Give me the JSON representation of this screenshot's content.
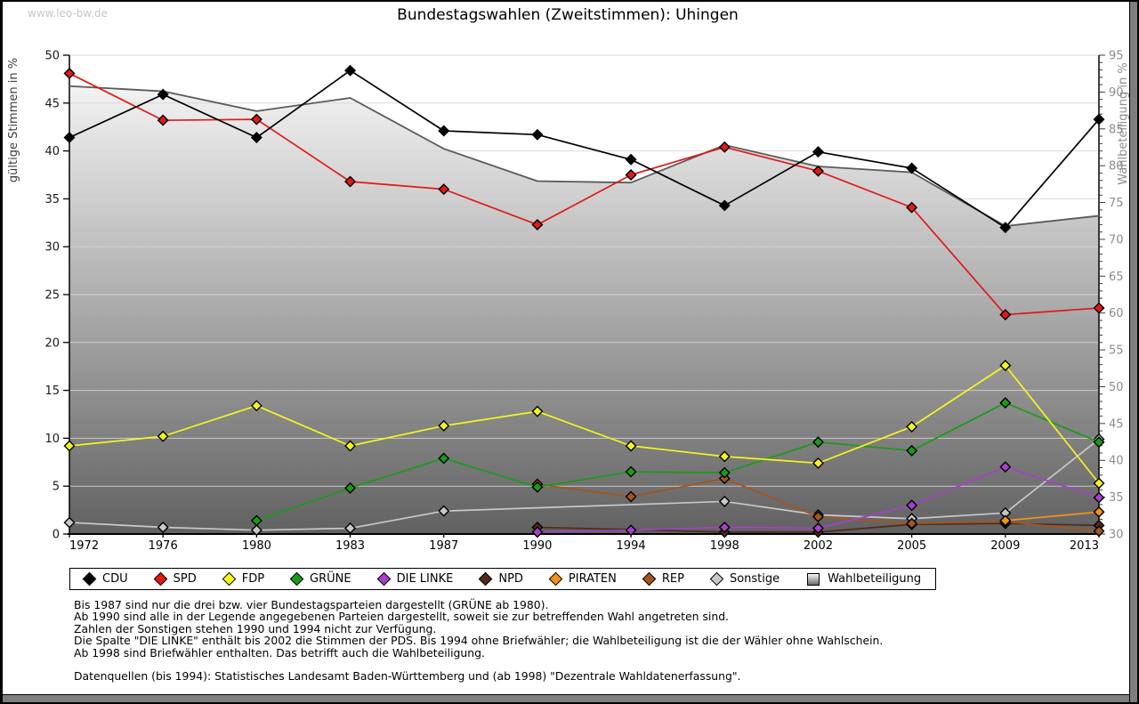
{
  "watermark": "www.leo-bw.de",
  "title": "Bundestagswahlen (Zweitstimmen): Uhingen",
  "chart_data": {
    "type": "line",
    "x": [
      "1972",
      "1976",
      "1980",
      "1983",
      "1987",
      "1990",
      "1994",
      "1998",
      "2002",
      "2005",
      "2009",
      "2013"
    ],
    "left_axis": {
      "label": "gültige Stimmen in %",
      "min": 0,
      "max": 50,
      "step": 5
    },
    "right_axis": {
      "label": "Wahlbeteiligung in %",
      "min": 30,
      "max": 95,
      "step": 5
    },
    "grid": true,
    "legend_position": "bottom",
    "area_fill": {
      "top": "#fdfdfd",
      "bottom": "#616161"
    },
    "series": [
      {
        "name": "CDU",
        "color": "#000000",
        "axis": "left",
        "values": [
          41.4,
          45.9,
          41.4,
          48.4,
          42.1,
          41.7,
          39.1,
          34.3,
          39.9,
          38.2,
          32.0,
          43.3
        ]
      },
      {
        "name": "SPD",
        "color": "#e01919",
        "axis": "left",
        "values": [
          48.1,
          43.2,
          43.3,
          36.8,
          36.0,
          32.3,
          37.5,
          40.4,
          37.9,
          34.1,
          22.9,
          23.6
        ]
      },
      {
        "name": "FDP",
        "color": "#f5f51e",
        "axis": "left",
        "values": [
          9.2,
          10.2,
          13.4,
          9.2,
          11.3,
          12.8,
          9.2,
          8.1,
          7.4,
          11.2,
          17.6,
          5.3
        ]
      },
      {
        "name": "GRÜNE",
        "color": "#189c18",
        "axis": "left",
        "values": [
          null,
          null,
          1.4,
          4.8,
          7.9,
          4.9,
          6.5,
          6.4,
          9.6,
          8.7,
          13.7,
          9.6
        ]
      },
      {
        "name": "DIE LINKE",
        "color": "#a541c9",
        "axis": "left",
        "values": [
          null,
          null,
          null,
          null,
          null,
          0.2,
          0.4,
          0.7,
          0.6,
          3.0,
          7.0,
          3.8
        ]
      },
      {
        "name": "NPD",
        "color": "#4f2c15",
        "axis": "left",
        "values": [
          null,
          null,
          null,
          null,
          null,
          0.7,
          null,
          0.2,
          0.2,
          1.0,
          1.1,
          0.9
        ]
      },
      {
        "name": "PIRATEN",
        "color": "#f39218",
        "axis": "left",
        "values": [
          null,
          null,
          null,
          null,
          null,
          null,
          null,
          null,
          null,
          null,
          1.4,
          2.3
        ]
      },
      {
        "name": "REP",
        "color": "#a5551d",
        "axis": "left",
        "values": [
          null,
          null,
          null,
          null,
          null,
          5.2,
          3.9,
          5.8,
          1.8,
          1.1,
          1.3,
          0.3
        ]
      },
      {
        "name": "Sonstige",
        "color": "#c8c8c8",
        "axis": "left",
        "values": [
          1.2,
          0.7,
          0.4,
          0.6,
          2.4,
          null,
          null,
          3.4,
          2.0,
          1.6,
          2.2,
          9.9
        ]
      },
      {
        "name": "Wahlbeteiligung",
        "color": "#5a5a5a",
        "axis": "right",
        "area": true,
        "markers": false,
        "legend_marker": "square",
        "values": [
          90.8,
          90.1,
          87.4,
          89.2,
          82.3,
          77.9,
          77.7,
          82.8,
          79.9,
          79.1,
          71.8,
          73.2
        ]
      }
    ]
  },
  "footnotes": [
    "Bis 1987 sind nur die drei bzw. vier Bundestagsparteien dargestellt (GRÜNE ab 1980).",
    "Ab 1990 sind alle in der Legende angegebenen Parteien dargestellt, soweit sie zur betreffenden Wahl angetreten sind.",
    "Zahlen der Sonstigen stehen 1990 und 1994 nicht zur Verfügung.",
    "Die Spalte \"DIE LINKE\" enthält bis 2002 die Stimmen der PDS. Bis 1994 ohne Briefwähler; die Wahlbeteiligung ist die der Wähler ohne Wahlschein.",
    "Ab 1998 sind Briefwähler enthalten. Das betrifft auch die Wahlbeteiligung.",
    "",
    "Datenquellen (bis 1994): Statistisches Landesamt Baden-Württemberg und (ab 1998) \"Dezentrale Wahldatenerfassung\"."
  ]
}
